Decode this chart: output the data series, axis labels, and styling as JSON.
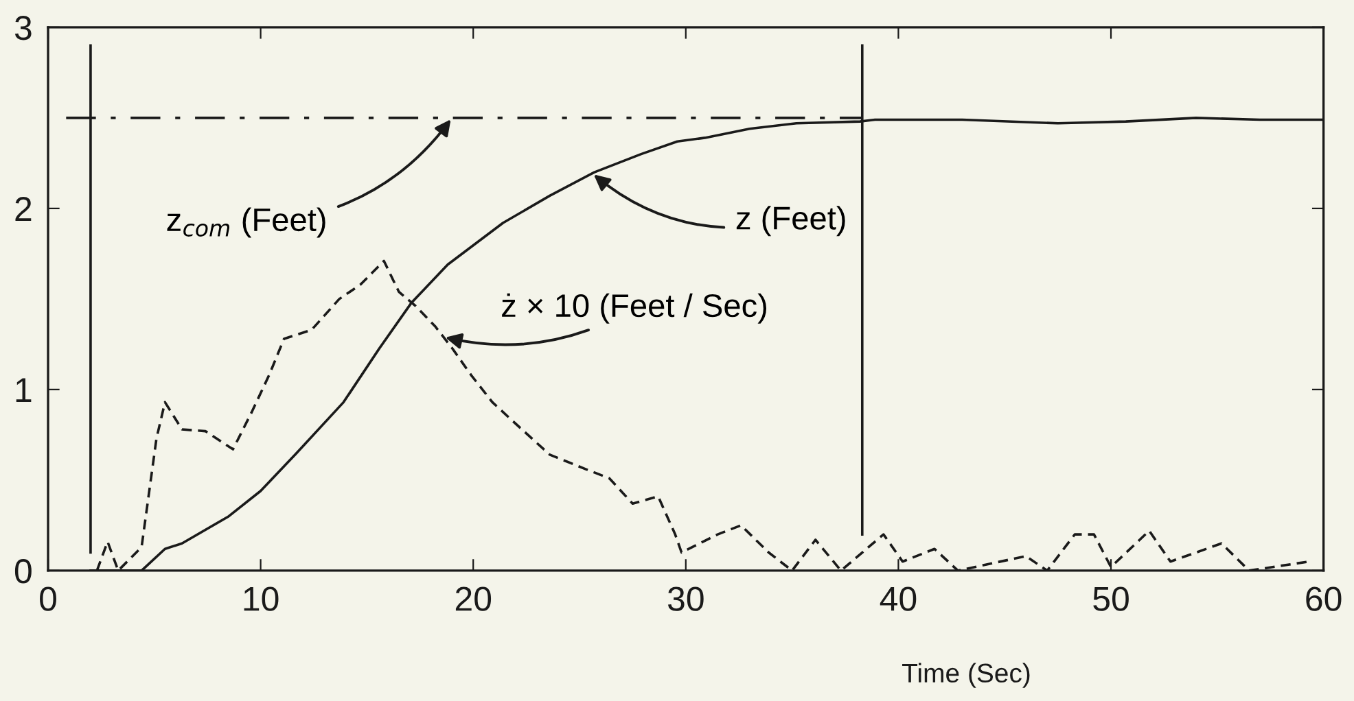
{
  "chart_data": {
    "type": "line",
    "xlabel": "Time (Sec)",
    "xlim": [
      0,
      60
    ],
    "ylim": [
      0,
      3
    ],
    "xticks": [
      0,
      10,
      20,
      30,
      40,
      50,
      60
    ],
    "yticks": [
      0,
      1,
      2,
      3
    ],
    "grid": false,
    "series": [
      {
        "name": "z$_{com}$ (Feet)",
        "color": "#1a1a1a",
        "line_style": "dashdot",
        "x": [
          0.85,
          38.3
        ],
        "values": [
          2.5,
          2.5
        ]
      },
      {
        "name": "z (Feet)",
        "color": "#1a1a1a",
        "line_style": "solid",
        "x": [
          2,
          4.4,
          5.5,
          6.3,
          8.5,
          10,
          11.7,
          13.9,
          15.6,
          17.1,
          18.8,
          21.4,
          23.6,
          25.7,
          27.9,
          29.6,
          30.9,
          33,
          35.2,
          38.2,
          38.9,
          43,
          47.5,
          50.7,
          54,
          57,
          60
        ],
        "values": [
          0,
          0,
          0.12,
          0.15,
          0.3,
          0.44,
          0.65,
          0.93,
          1.23,
          1.48,
          1.69,
          1.92,
          2.07,
          2.2,
          2.3,
          2.37,
          2.39,
          2.44,
          2.47,
          2.48,
          2.49,
          2.49,
          2.47,
          2.48,
          2.5,
          2.49,
          2.49
        ]
      },
      {
        "name": "ż × 10 (Feet / Sec)",
        "color": "#1a1a1a",
        "line_style": "dashed",
        "x": [
          2.3,
          2.8,
          3.3,
          4.4,
          5.1,
          5.5,
          6.3,
          7.4,
          8.7,
          9.6,
          10.4,
          11.1,
          12.4,
          13.7,
          14.7,
          15.8,
          16.5,
          17.3,
          18.2,
          19.0,
          19.9,
          20.9,
          22.1,
          23.6,
          25.3,
          26.4,
          27.5,
          28.7,
          29.5,
          29.8,
          31.5,
          32.6,
          33.9,
          35.0,
          36.1,
          37.3,
          39.3,
          40.2,
          41.7,
          42.8,
          46,
          47,
          48.3,
          49.2,
          50,
          51.8,
          52.8,
          55.2,
          56.5,
          59.3
        ],
        "values": [
          0,
          0.16,
          0,
          0.13,
          0.73,
          0.93,
          0.78,
          0.77,
          0.67,
          0.88,
          1.08,
          1.28,
          1.33,
          1.5,
          1.58,
          1.71,
          1.54,
          1.46,
          1.35,
          1.23,
          1.08,
          0.93,
          0.8,
          0.64,
          0.56,
          0.51,
          0.37,
          0.41,
          0.2,
          0.1,
          0.2,
          0.25,
          0.1,
          0,
          0.17,
          0,
          0.2,
          0.05,
          0.12,
          0,
          0.08,
          0,
          0.2,
          0.2,
          0.02,
          0.22,
          0.05,
          0.15,
          0,
          0.05
        ]
      },
      {
        "color": "#1a1a1a",
        "line_style": "solid",
        "x": [
          2,
          2
        ],
        "values": [
          0.1,
          2.9
        ]
      },
      {
        "color": "#1a1a1a",
        "line_style": "solid",
        "x": [
          38.3,
          38.3
        ],
        "values": [
          0.2,
          2.9
        ]
      }
    ]
  }
}
